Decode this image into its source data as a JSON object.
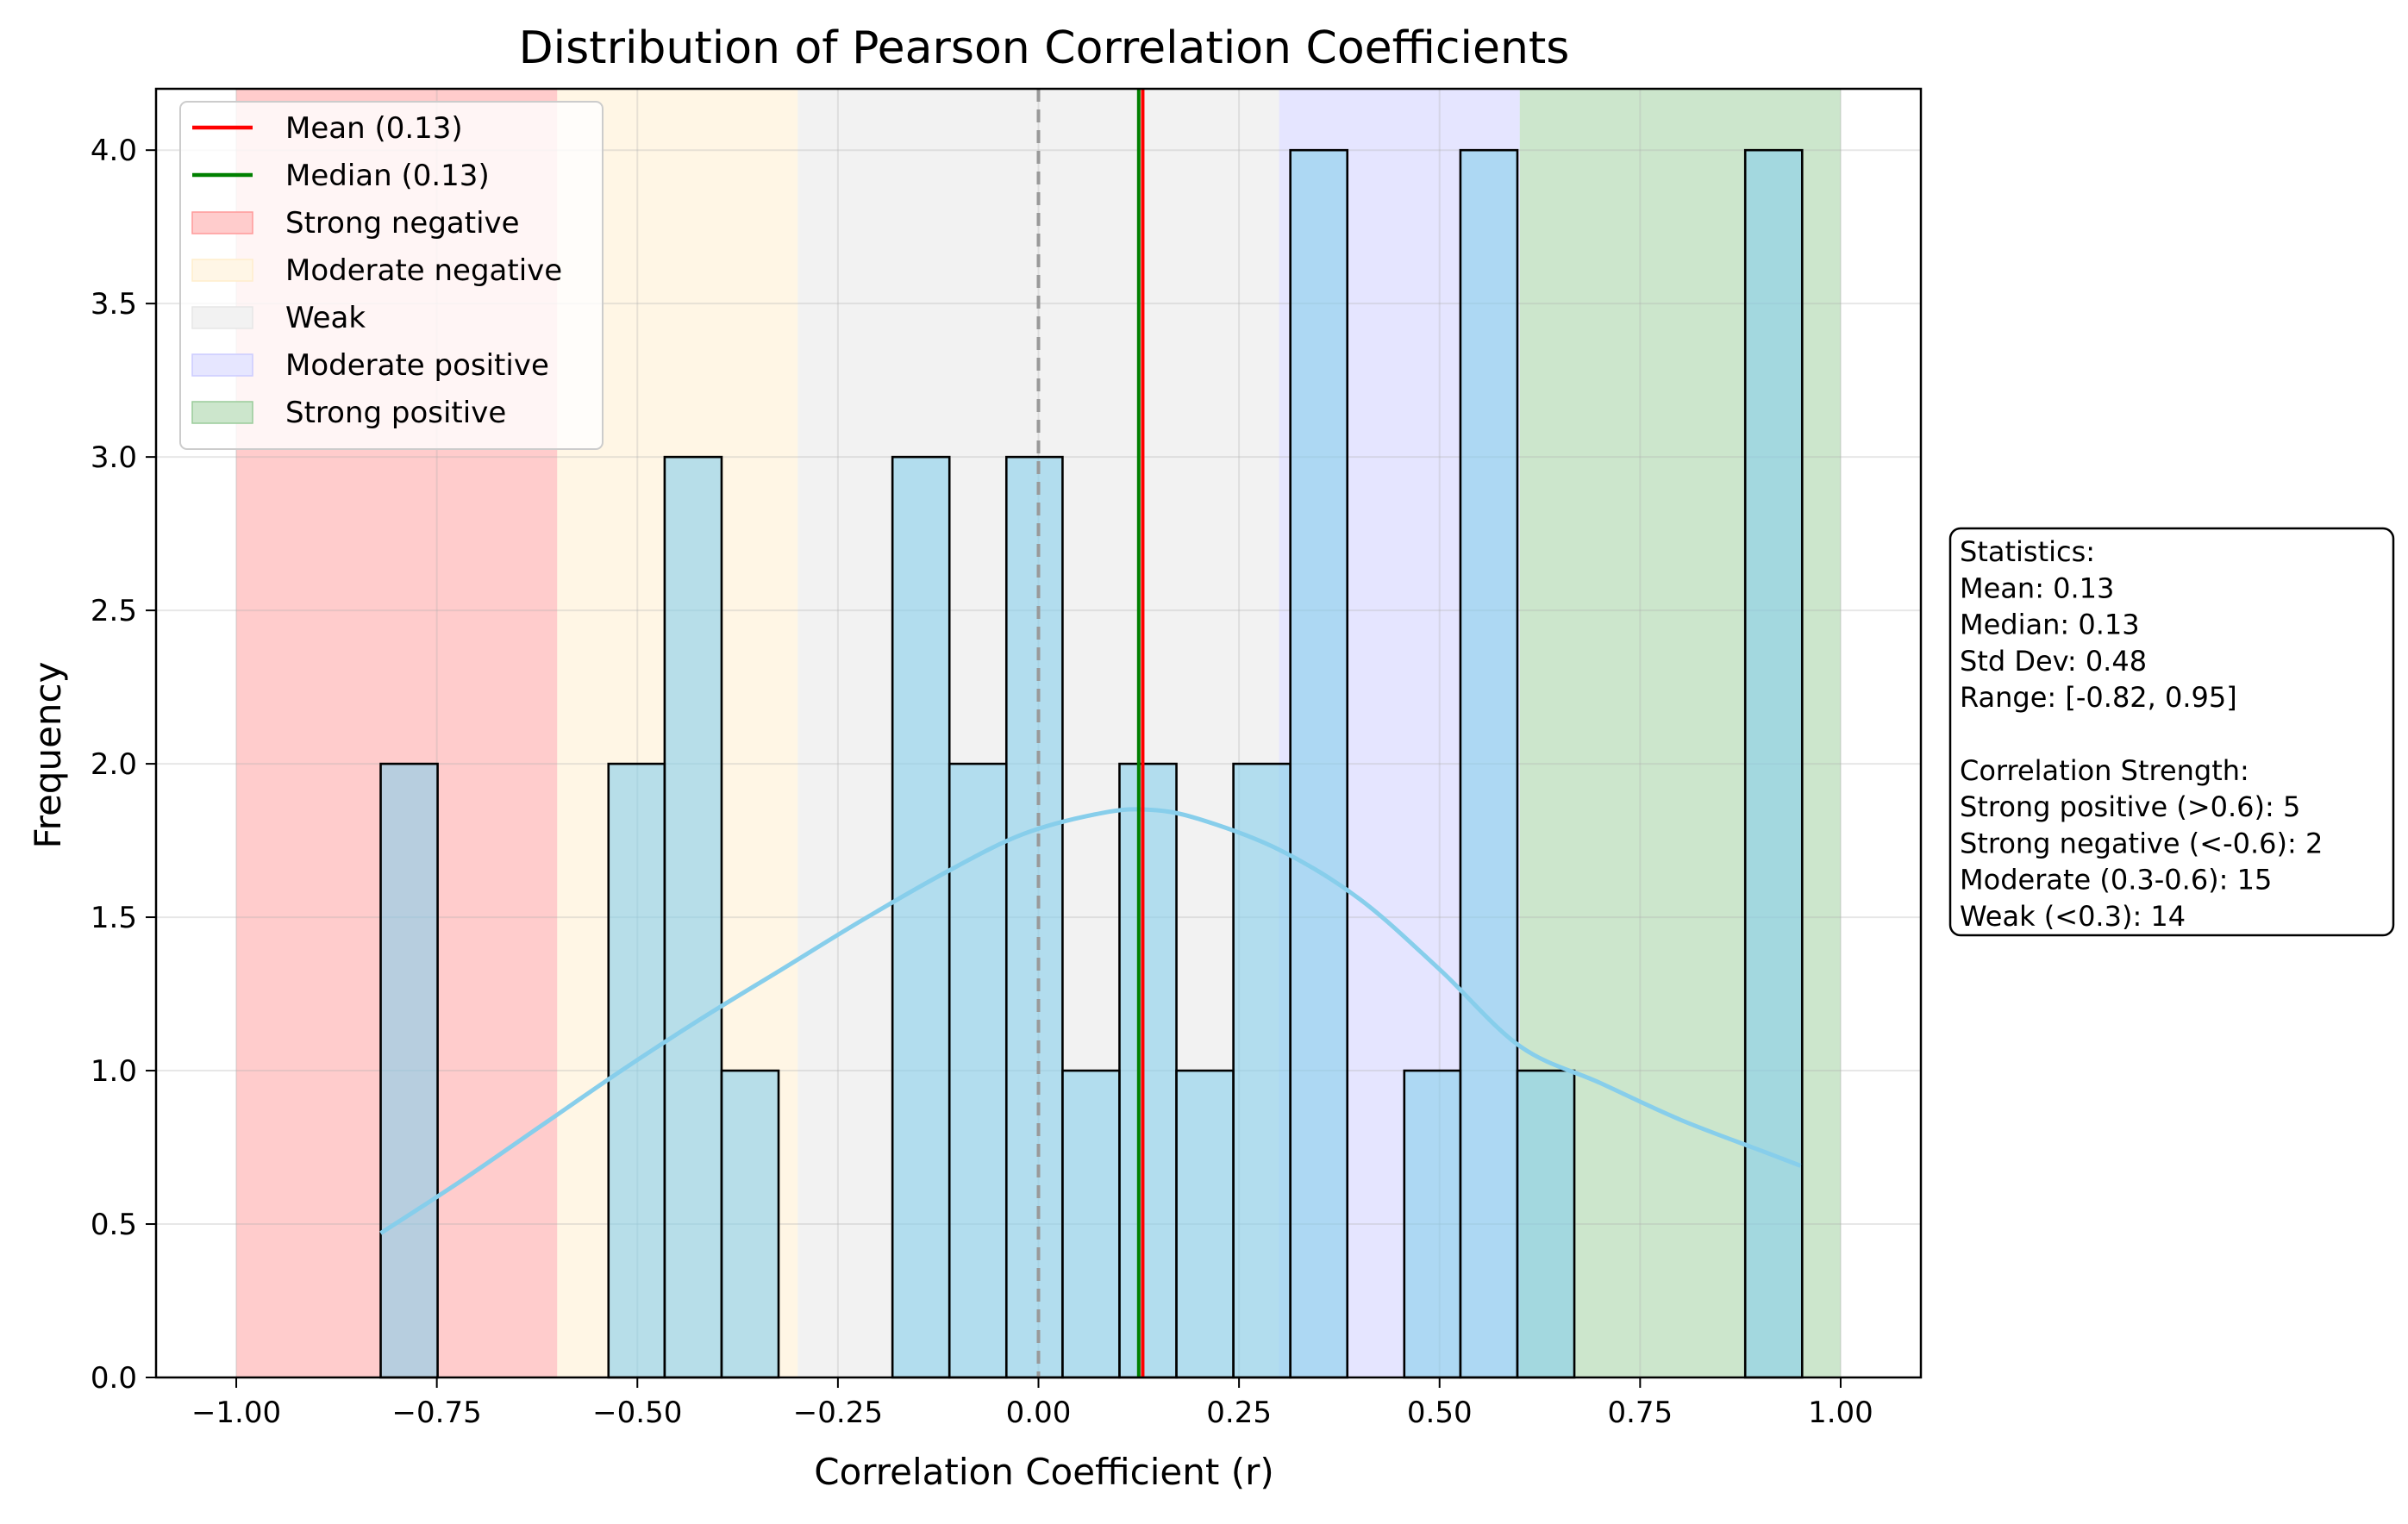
{
  "chart_data": {
    "type": "bar",
    "title": "Distribution of Pearson Correlation Coefficients",
    "xlabel": "Correlation Coefficient (r)",
    "ylabel": "Frequency",
    "xlim": [
      -1.1,
      1.1
    ],
    "ylim": [
      0,
      4.2
    ],
    "grid": true,
    "x_ticks": [
      -1.0,
      -0.75,
      -0.5,
      -0.25,
      0.0,
      0.25,
      0.5,
      0.75,
      1.0
    ],
    "x_tick_labels": [
      "−1.00",
      "−0.75",
      "−0.50",
      "−0.25",
      "0.00",
      "0.25",
      "0.50",
      "0.75",
      "1.00"
    ],
    "y_ticks": [
      0.0,
      0.5,
      1.0,
      1.5,
      2.0,
      2.5,
      3.0,
      3.5,
      4.0
    ],
    "y_tick_labels": [
      "0.0",
      "0.5",
      "1.0",
      "1.5",
      "2.0",
      "2.5",
      "3.0",
      "3.5",
      "4.0"
    ],
    "bins": [
      {
        "x0": -0.82,
        "x1": -0.749,
        "count": 2
      },
      {
        "x0": -0.749,
        "x1": -0.678,
        "count": 0
      },
      {
        "x0": -0.678,
        "x1": -0.607,
        "count": 0
      },
      {
        "x0": -0.607,
        "x1": -0.536,
        "count": 0
      },
      {
        "x0": -0.536,
        "x1": -0.466,
        "count": 2
      },
      {
        "x0": -0.466,
        "x1": -0.395,
        "count": 3
      },
      {
        "x0": -0.395,
        "x1": -0.324,
        "count": 1
      },
      {
        "x0": -0.324,
        "x1": -0.253,
        "count": 0
      },
      {
        "x0": -0.253,
        "x1": -0.182,
        "count": 0
      },
      {
        "x0": -0.182,
        "x1": -0.111,
        "count": 3
      },
      {
        "x0": -0.111,
        "x1": -0.04,
        "count": 2
      },
      {
        "x0": -0.04,
        "x1": 0.03,
        "count": 3
      },
      {
        "x0": 0.03,
        "x1": 0.101,
        "count": 1
      },
      {
        "x0": 0.101,
        "x1": 0.172,
        "count": 2
      },
      {
        "x0": 0.172,
        "x1": 0.243,
        "count": 1
      },
      {
        "x0": 0.243,
        "x1": 0.314,
        "count": 2
      },
      {
        "x0": 0.314,
        "x1": 0.385,
        "count": 4
      },
      {
        "x0": 0.385,
        "x1": 0.456,
        "count": 0
      },
      {
        "x0": 0.456,
        "x1": 0.526,
        "count": 1
      },
      {
        "x0": 0.526,
        "x1": 0.597,
        "count": 4
      },
      {
        "x0": 0.597,
        "x1": 0.668,
        "count": 1
      },
      {
        "x0": 0.668,
        "x1": 0.739,
        "count": 0
      },
      {
        "x0": 0.739,
        "x1": 0.81,
        "count": 0
      },
      {
        "x0": 0.81,
        "x1": 0.881,
        "count": 0
      },
      {
        "x0": 0.881,
        "x1": 0.952,
        "count": 4
      }
    ],
    "kde": {
      "x": [
        -0.82,
        -0.72,
        -0.62,
        -0.52,
        -0.42,
        -0.32,
        -0.22,
        -0.12,
        -0.02,
        0.08,
        0.14,
        0.2,
        0.3,
        0.4,
        0.5,
        0.6,
        0.7,
        0.8,
        0.9,
        0.95
      ],
      "y": [
        0.47,
        0.64,
        0.82,
        1.0,
        1.17,
        1.33,
        1.49,
        1.64,
        1.77,
        1.84,
        1.85,
        1.82,
        1.72,
        1.56,
        1.33,
        1.08,
        0.96,
        0.84,
        0.74,
        0.69
      ]
    },
    "mean_line": {
      "x": 0.13,
      "label": "Mean (0.13)",
      "color": "#ff0000"
    },
    "median_line": {
      "x": 0.125,
      "label": "Median (0.13)",
      "color": "#008000"
    },
    "zero_line": {
      "x": 0.0,
      "color": "#999999"
    },
    "regions": [
      {
        "label": "Strong negative",
        "x0": -1.0,
        "x1": -0.6,
        "color": "#ff0000",
        "alpha": 0.2
      },
      {
        "label": "Moderate negative",
        "x0": -0.6,
        "x1": -0.3,
        "color": "#ffa500",
        "alpha": 0.1
      },
      {
        "label": "Weak",
        "x0": -0.3,
        "x1": 0.3,
        "color": "#808080",
        "alpha": 0.1
      },
      {
        "label": "Moderate positive",
        "x0": 0.3,
        "x1": 0.6,
        "color": "#0000ff",
        "alpha": 0.1
      },
      {
        "label": "Strong positive",
        "x0": 0.6,
        "x1": 1.0,
        "color": "#008000",
        "alpha": 0.2
      }
    ],
    "bar_color": "#87ceeb",
    "bar_alpha": 0.6,
    "kde_color": "#87ceeb",
    "legend_position": "top-left",
    "legend": [
      {
        "label": "Mean (0.13)",
        "kind": "line",
        "color": "#ff0000"
      },
      {
        "label": "Median (0.13)",
        "kind": "line",
        "color": "#008000"
      },
      {
        "label": "Strong negative",
        "kind": "patch",
        "color": "#ff0000",
        "alpha": 0.2
      },
      {
        "label": "Moderate negative",
        "kind": "patch",
        "color": "#ffa500",
        "alpha": 0.1
      },
      {
        "label": "Weak",
        "kind": "patch",
        "color": "#808080",
        "alpha": 0.1
      },
      {
        "label": "Moderate positive",
        "kind": "patch",
        "color": "#0000ff",
        "alpha": 0.1
      },
      {
        "label": "Strong positive",
        "kind": "patch",
        "color": "#008000",
        "alpha": 0.2
      }
    ],
    "stats_box": [
      "Statistics:",
      "Mean: 0.13",
      "Median: 0.13",
      "Std Dev: 0.48",
      "Range: [-0.82, 0.95]",
      "",
      "Correlation Strength:",
      "Strong positive (>0.6): 5",
      "Strong negative (<-0.6): 2",
      "Moderate (0.3-0.6): 15",
      "Weak (<0.3): 14"
    ]
  }
}
